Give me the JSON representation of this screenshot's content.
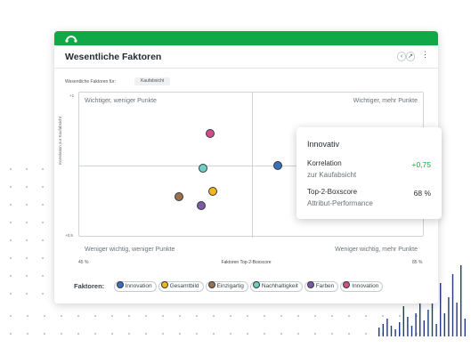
{
  "app": {
    "brand_color": "#10a945",
    "logo_icon": "ellipsis-arch-logo"
  },
  "header": {
    "title": "Wesentliche Faktoren",
    "actions": [
      {
        "icon": "collapse-icon",
        "label": "‹"
      },
      {
        "icon": "expand-icon",
        "label": "↗"
      }
    ],
    "menu_label": "⋮"
  },
  "filter": {
    "label": "Wesentliche Faktoren für:",
    "value": "Kaufabsicht"
  },
  "chart_data": {
    "type": "scatter",
    "xlabel": "Faktoren Top-2-Boxscore",
    "ylabel": "Korrelation zur Kaufabsicht",
    "xlim_labels": [
      "45 %",
      "85 %"
    ],
    "ylim_labels": [
      "+0,5",
      "+1"
    ],
    "xlim": [
      45,
      85
    ],
    "ylim": [
      0.5,
      1
    ],
    "grid": false,
    "quadrants": {
      "top_left": "Wichtiger, weniger Punkte",
      "top_right": "Wichtiger, mehr Punkte",
      "bottom_left": "Weniger wichtig, weniger Punkte",
      "bottom_right": "Weniger wichtig, mehr Punkte"
    },
    "points": [
      {
        "name": "Innovation",
        "color": "#3c6fb9",
        "x": 68,
        "y": 0.75
      },
      {
        "name": "Gesamtbild",
        "color": "#f2b51c",
        "x": 60.5,
        "y": 0.66
      },
      {
        "name": "Einzigartig",
        "color": "#a0704b",
        "x": 56.5,
        "y": 0.64
      },
      {
        "name": "Nachhaltigkeit",
        "color": "#6fcfc4",
        "x": 59.3,
        "y": 0.74
      },
      {
        "name": "Farben",
        "color": "#7d5aa6",
        "x": 59.1,
        "y": 0.61
      },
      {
        "name": "Innovation",
        "color": "#d14d8b",
        "x": 60.2,
        "y": 0.86
      }
    ]
  },
  "legend": {
    "title": "Faktoren:",
    "items": [
      {
        "label": "Innovation",
        "color": "#3c6fb9"
      },
      {
        "label": "Gesamtbild",
        "color": "#f2b51c"
      },
      {
        "label": "Einzigartig",
        "color": "#a0704b"
      },
      {
        "label": "Nachhaltigkeit",
        "color": "#6fcfc4"
      },
      {
        "label": "Farben",
        "color": "#7d5aa6"
      },
      {
        "label": "Innovation",
        "color": "#d14d8b"
      }
    ]
  },
  "tooltip": {
    "title": "Innovativ",
    "metric1_label": "Korrelation",
    "metric1_sub": "zur Kaufabsicht",
    "metric1_value": "+0,75",
    "metric1_color": "#10a945",
    "metric2_label": "Top-2-Boxscore",
    "metric2_sub": "Attribut-Performance",
    "metric2_value": "68 %"
  }
}
